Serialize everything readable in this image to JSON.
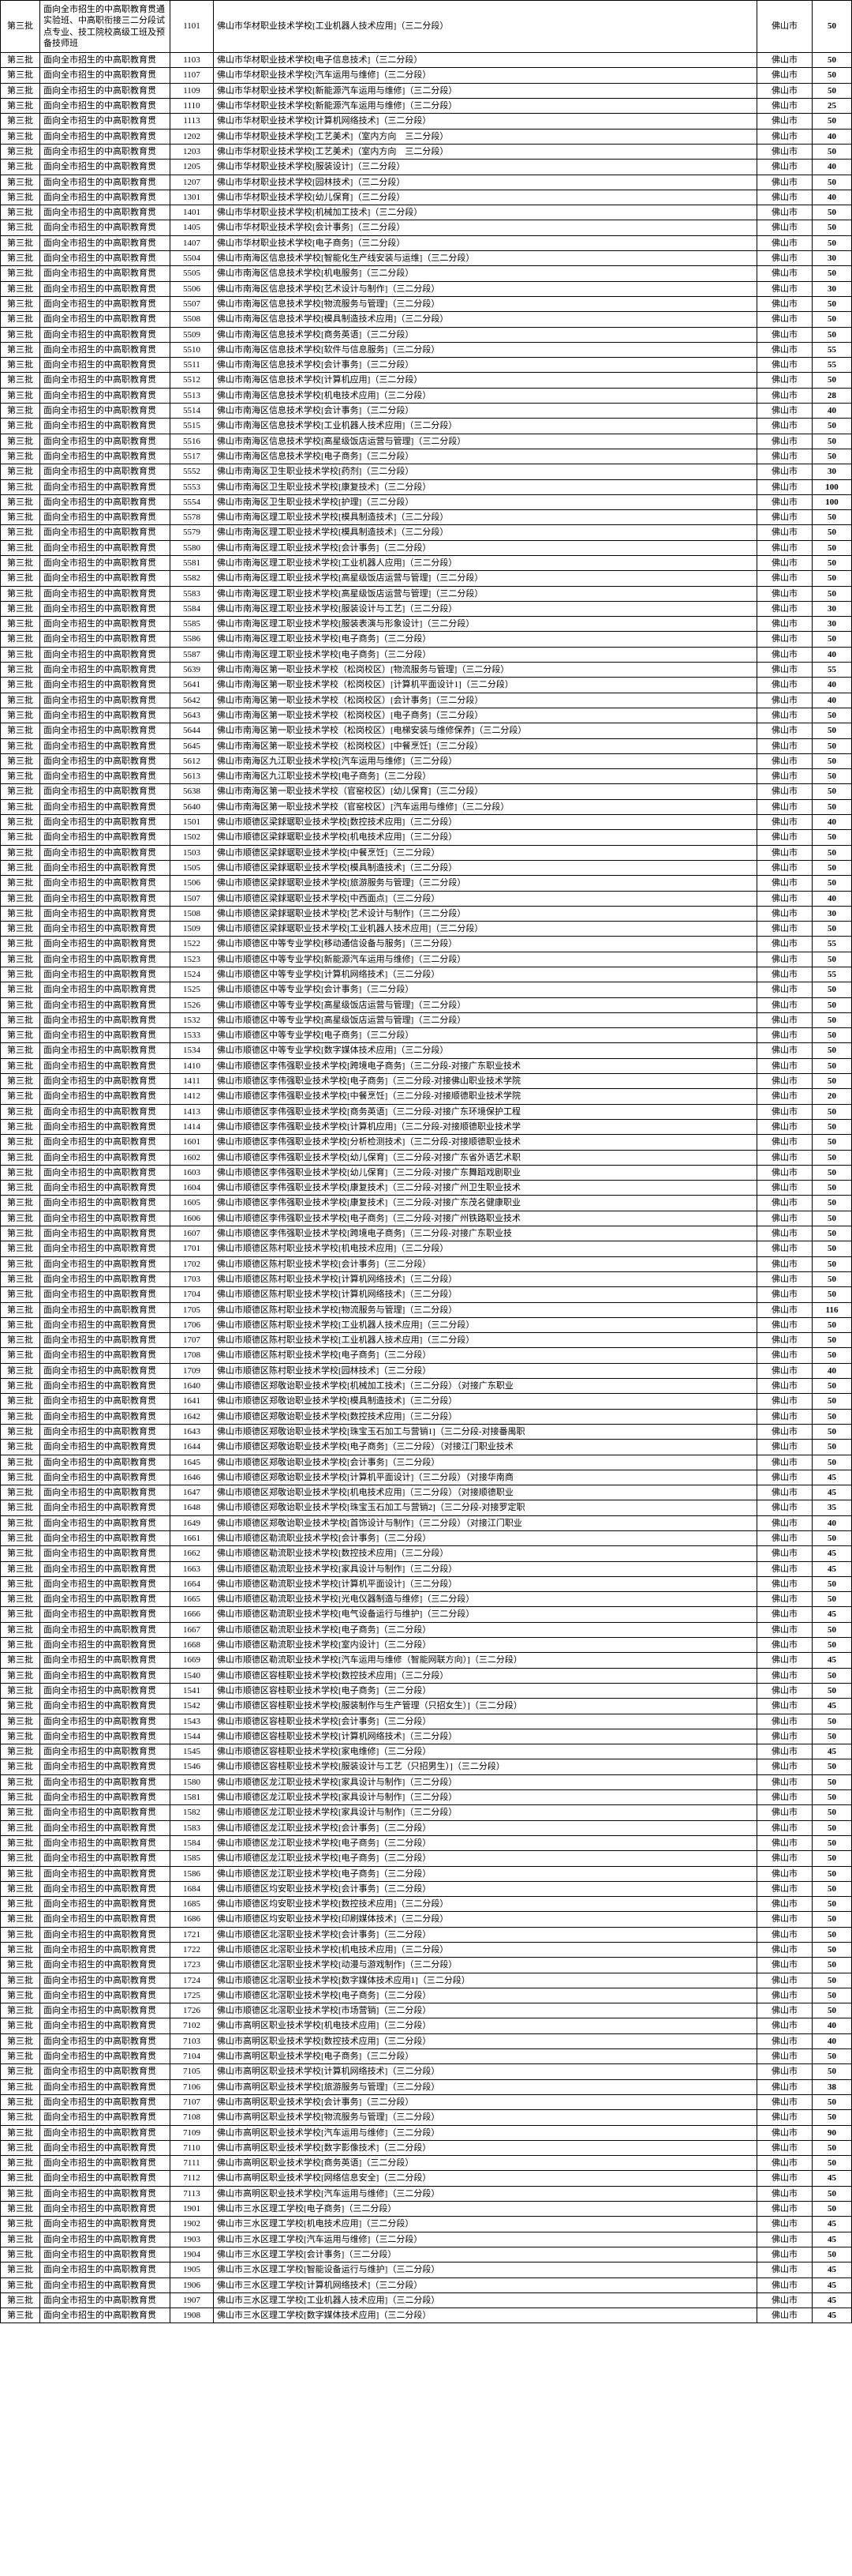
{
  "table": {
    "batch_label": "第三批",
    "category_full": "面向全市招生的中高职教育贯通实验班、中高职衔接三二分段试点专业、技工院校高级工班及预备技师班",
    "category_short": "面向全市招生的中高职教育贯",
    "city": "佛山市",
    "first_row": {
      "code": "1101",
      "school": "佛山市华材职业技术学校[工业机器人技术应用]（三二分段）",
      "quota": "50"
    },
    "rows": [
      {
        "code": "1103",
        "school": "佛山市华材职业技术学校[电子信息技术]（三二分段）",
        "quota": "50"
      },
      {
        "code": "1107",
        "school": "佛山市华材职业技术学校[汽车运用与维修]（三二分段）",
        "quota": "50"
      },
      {
        "code": "1109",
        "school": "佛山市华材职业技术学校[新能源汽车运用与维修]（三二分段）",
        "quota": "50"
      },
      {
        "code": "1110",
        "school": "佛山市华材职业技术学校[新能源汽车运用与维修]（三二分段）",
        "quota": "25"
      },
      {
        "code": "1113",
        "school": "佛山市华材职业技术学校[计算机网络技术]（三二分段）",
        "quota": "50"
      },
      {
        "code": "1202",
        "school": "佛山市华材职业技术学校[工艺美术]（室内方向　三二分段）",
        "quota": "40"
      },
      {
        "code": "1203",
        "school": "佛山市华材职业技术学校[工艺美术]（室内方向　三二分段）",
        "quota": "50"
      },
      {
        "code": "1205",
        "school": "佛山市华材职业技术学校[服装设计]（三二分段）",
        "quota": "40"
      },
      {
        "code": "1207",
        "school": "佛山市华材职业技术学校[园林技术]（三二分段）",
        "quota": "50"
      },
      {
        "code": "1301",
        "school": "佛山市华材职业技术学校[幼儿保育]（三二分段）",
        "quota": "40"
      },
      {
        "code": "1401",
        "school": "佛山市华材职业技术学校[机械加工技术]（三二分段）",
        "quota": "50"
      },
      {
        "code": "1405",
        "school": "佛山市华材职业技术学校[会计事务]（三二分段）",
        "quota": "50"
      },
      {
        "code": "1407",
        "school": "佛山市华材职业技术学校[电子商务]（三二分段）",
        "quota": "50"
      },
      {
        "code": "5504",
        "school": "佛山市南海区信息技术学校[智能化生产线安装与运维]（三二分段）",
        "quota": "30"
      },
      {
        "code": "5505",
        "school": "佛山市南海区信息技术学校[机电服务]（三二分段）",
        "quota": "50"
      },
      {
        "code": "5506",
        "school": "佛山市南海区信息技术学校[艺术设计与制作]（三二分段）",
        "quota": "30"
      },
      {
        "code": "5507",
        "school": "佛山市南海区信息技术学校[物流服务与管理]（三二分段）",
        "quota": "50"
      },
      {
        "code": "5508",
        "school": "佛山市南海区信息技术学校[模具制造技术应用]（三二分段）",
        "quota": "50"
      },
      {
        "code": "5509",
        "school": "佛山市南海区信息技术学校[商务英语]（三二分段）",
        "quota": "50"
      },
      {
        "code": "5510",
        "school": "佛山市南海区信息技术学校[软件与信息服务]（三二分段）",
        "quota": "55"
      },
      {
        "code": "5511",
        "school": "佛山市南海区信息技术学校[会计事务]（三二分段）",
        "quota": "55"
      },
      {
        "code": "5512",
        "school": "佛山市南海区信息技术学校[计算机应用]（三二分段）",
        "quota": "50"
      },
      {
        "code": "5513",
        "school": "佛山市南海区信息技术学校[机电技术应用]（三二分段）",
        "quota": "28"
      },
      {
        "code": "5514",
        "school": "佛山市南海区信息技术学校[会计事务]（三二分段）",
        "quota": "40"
      },
      {
        "code": "5515",
        "school": "佛山市南海区信息技术学校[工业机器人技术应用]（三二分段）",
        "quota": "50"
      },
      {
        "code": "5516",
        "school": "佛山市南海区信息技术学校[高星级饭店运营与管理]（三二分段）",
        "quota": "50"
      },
      {
        "code": "5517",
        "school": "佛山市南海区信息技术学校[电子商务]（三二分段）",
        "quota": "50"
      },
      {
        "code": "5552",
        "school": "佛山市南海区卫生职业技术学校[药剂]（三二分段）",
        "quota": "30"
      },
      {
        "code": "5553",
        "school": "佛山市南海区卫生职业技术学校[康复技术]（三二分段）",
        "quota": "100"
      },
      {
        "code": "5554",
        "school": "佛山市南海区卫生职业技术学校[护理]（三二分段）",
        "quota": "100"
      },
      {
        "code": "5578",
        "school": "佛山市南海区理工职业技术学校[模具制造技术]（三二分段）",
        "quota": "50"
      },
      {
        "code": "5579",
        "school": "佛山市南海区理工职业技术学校[模具制造技术]（三二分段）",
        "quota": "50"
      },
      {
        "code": "5580",
        "school": "佛山市南海区理工职业技术学校[会计事务]（三二分段）",
        "quota": "50"
      },
      {
        "code": "5581",
        "school": "佛山市南海区理工职业技术学校[工业机器人应用]（三二分段）",
        "quota": "50"
      },
      {
        "code": "5582",
        "school": "佛山市南海区理工职业技术学校[高星级饭店运营与管理]（三二分段）",
        "quota": "50"
      },
      {
        "code": "5583",
        "school": "佛山市南海区理工职业技术学校[高星级饭店运营与管理]（三二分段）",
        "quota": "50"
      },
      {
        "code": "5584",
        "school": "佛山市南海区理工职业技术学校[服装设计与工艺]（三二分段）",
        "quota": "30"
      },
      {
        "code": "5585",
        "school": "佛山市南海区理工职业技术学校[服装表演与形象设计]（三二分段）",
        "quota": "30"
      },
      {
        "code": "5586",
        "school": "佛山市南海区理工职业技术学校[电子商务]（三二分段）",
        "quota": "50"
      },
      {
        "code": "5587",
        "school": "佛山市南海区理工职业技术学校[电子商务]（三二分段）",
        "quota": "40"
      },
      {
        "code": "5639",
        "school": "佛山市南海区第一职业技术学校（松岗校区）[物流服务与管理]（三二分段）",
        "quota": "55"
      },
      {
        "code": "5641",
        "school": "佛山市南海区第一职业技术学校（松岗校区）[计算机平面设计1]（三二分段）",
        "quota": "40"
      },
      {
        "code": "5642",
        "school": "佛山市南海区第一职业技术学校（松岗校区）[会计事务]（三二分段）",
        "quota": "40"
      },
      {
        "code": "5643",
        "school": "佛山市南海区第一职业技术学校（松岗校区）[电子商务]（三二分段）",
        "quota": "50"
      },
      {
        "code": "5644",
        "school": "佛山市南海区第一职业技术学校（松岗校区）[电梯安装与维修保养]（三二分段）",
        "quota": "50"
      },
      {
        "code": "5645",
        "school": "佛山市南海区第一职业技术学校（松岗校区）[中餐烹饪]（三二分段）",
        "quota": "50"
      },
      {
        "code": "5612",
        "school": "佛山市南海区九江职业技术学校[汽车运用与维修]（三二分段）",
        "quota": "50"
      },
      {
        "code": "5613",
        "school": "佛山市南海区九江职业技术学校[电子商务]（三二分段）",
        "quota": "50"
      },
      {
        "code": "5638",
        "school": "佛山市南海区第一职业技术学校（官窑校区）[幼儿保育]（三二分段）",
        "quota": "50"
      },
      {
        "code": "5640",
        "school": "佛山市南海区第一职业技术学校（官窑校区）[汽车运用与维修]（三二分段）",
        "quota": "50"
      },
      {
        "code": "1501",
        "school": "佛山市顺德区梁銶琚职业技术学校[数控技术应用]（三二分段）",
        "quota": "40"
      },
      {
        "code": "1502",
        "school": "佛山市顺德区梁銶琚职业技术学校[机电技术应用]（三二分段）",
        "quota": "50"
      },
      {
        "code": "1503",
        "school": "佛山市顺德区梁銶琚职业技术学校[中餐烹饪]（三二分段）",
        "quota": "50"
      },
      {
        "code": "1505",
        "school": "佛山市顺德区梁銶琚职业技术学校[模具制造技术]（三二分段）",
        "quota": "50"
      },
      {
        "code": "1506",
        "school": "佛山市顺德区梁銶琚职业技术学校[旅游服务与管理]（三二分段）",
        "quota": "50"
      },
      {
        "code": "1507",
        "school": "佛山市顺德区梁銶琚职业技术学校[中西面点]（三二分段）",
        "quota": "40"
      },
      {
        "code": "1508",
        "school": "佛山市顺德区梁銶琚职业技术学校[艺术设计与制作]（三二分段）",
        "quota": "30"
      },
      {
        "code": "1509",
        "school": "佛山市顺德区梁銶琚职业技术学校[工业机器人技术应用]（三二分段）",
        "quota": "50"
      },
      {
        "code": "1522",
        "school": "佛山市顺德区中等专业学校[移动通信设备与服务]（三二分段）",
        "quota": "55"
      },
      {
        "code": "1523",
        "school": "佛山市顺德区中等专业学校[新能源汽车运用与维修]（三二分段）",
        "quota": "50"
      },
      {
        "code": "1524",
        "school": "佛山市顺德区中等专业学校[计算机网络技术]（三二分段）",
        "quota": "55"
      },
      {
        "code": "1525",
        "school": "佛山市顺德区中等专业学校[会计事务]（三二分段）",
        "quota": "50"
      },
      {
        "code": "1526",
        "school": "佛山市顺德区中等专业学校[高星级饭店运营与管理]（三二分段）",
        "quota": "50"
      },
      {
        "code": "1532",
        "school": "佛山市顺德区中等专业学校[高星级饭店运营与管理]（三二分段）",
        "quota": "50"
      },
      {
        "code": "1533",
        "school": "佛山市顺德区中等专业学校[电子商务]（三二分段）",
        "quota": "50"
      },
      {
        "code": "1534",
        "school": "佛山市顺德区中等专业学校[数字媒体技术应用]（三二分段）",
        "quota": "50"
      },
      {
        "code": "1410",
        "school": "佛山市顺德区李伟强职业技术学校[跨境电子商务]（三二分段-对接广东职业技术",
        "quota": "50"
      },
      {
        "code": "1411",
        "school": "佛山市顺德区李伟强职业技术学校[电子商务]（三二分段-对接佛山职业技术学院",
        "quota": "50"
      },
      {
        "code": "1412",
        "school": "佛山市顺德区李伟强职业技术学校[中餐烹饪]（三二分段-对接顺德职业技术学院",
        "quota": "20"
      },
      {
        "code": "1413",
        "school": "佛山市顺德区李伟强职业技术学校[商务英语]（三二分段-对接广东环境保护工程",
        "quota": "50"
      },
      {
        "code": "1414",
        "school": "佛山市顺德区李伟强职业技术学校[计算机应用]（三二分段-对接顺德职业技术学",
        "quota": "50"
      },
      {
        "code": "1601",
        "school": "佛山市顺德区李伟强职业技术学校[分析检测技术]（三二分段-对接顺德职业技术",
        "quota": "50"
      },
      {
        "code": "1602",
        "school": "佛山市顺德区李伟强职业技术学校[幼儿保育]（三二分段-对接广东省外语艺术职",
        "quota": "50"
      },
      {
        "code": "1603",
        "school": "佛山市顺德区李伟强职业技术学校[幼儿保育]（三二分段-对接广东舞蹈戏剧职业",
        "quota": "50"
      },
      {
        "code": "1604",
        "school": "佛山市顺德区李伟强职业技术学校[康复技术]（三二分段-对接广州卫生职业技术",
        "quota": "50"
      },
      {
        "code": "1605",
        "school": "佛山市顺德区李伟强职业技术学校[康复技术]（三二分段-对接广东茂名健康职业",
        "quota": "50"
      },
      {
        "code": "1606",
        "school": "佛山市顺德区李伟强职业技术学校[电子商务]（三二分段-对接广州铁路职业技术",
        "quota": "50"
      },
      {
        "code": "1607",
        "school": "佛山市顺德区李伟强职业技术学校[跨境电子商务]（三二分段-对接广东职业技",
        "quota": "50"
      },
      {
        "code": "1701",
        "school": "佛山市顺德区陈村职业技术学校[机电技术应用]（三二分段）",
        "quota": "50"
      },
      {
        "code": "1702",
        "school": "佛山市顺德区陈村职业技术学校[会计事务]（三二分段）",
        "quota": "50"
      },
      {
        "code": "1703",
        "school": "佛山市顺德区陈村职业技术学校[计算机网络技术]（三二分段）",
        "quota": "50"
      },
      {
        "code": "1704",
        "school": "佛山市顺德区陈村职业技术学校[计算机网络技术]（三二分段）",
        "quota": "50"
      },
      {
        "code": "1705",
        "school": "佛山市顺德区陈村职业技术学校[物流服务与管理]（三二分段）",
        "quota": "116"
      },
      {
        "code": "1706",
        "school": "佛山市顺德区陈村职业技术学校[工业机器人技术应用]（三二分段）",
        "quota": "50"
      },
      {
        "code": "1707",
        "school": "佛山市顺德区陈村职业技术学校[工业机器人技术应用]（三二分段）",
        "quota": "50"
      },
      {
        "code": "1708",
        "school": "佛山市顺德区陈村职业技术学校[电子商务]（三二分段）",
        "quota": "50"
      },
      {
        "code": "1709",
        "school": "佛山市顺德区陈村职业技术学校[园林技术]（三二分段）",
        "quota": "40"
      },
      {
        "code": "1640",
        "school": "佛山市顺德区郑敬诒职业技术学校[机械加工技术]（三二分段）（对接广东职业",
        "quota": "50"
      },
      {
        "code": "1641",
        "school": "佛山市顺德区郑敬诒职业技术学校[模具制造技术]（三二分段）",
        "quota": "50"
      },
      {
        "code": "1642",
        "school": "佛山市顺德区郑敬诒职业技术学校[数控技术应用]（三二分段）",
        "quota": "50"
      },
      {
        "code": "1643",
        "school": "佛山市顺德区郑敬诒职业技术学校[珠宝玉石加工与营销1]（三二分段-对接番禺职",
        "quota": "50"
      },
      {
        "code": "1644",
        "school": "佛山市顺德区郑敬诒职业技术学校[电子商务]（三二分段）（对接江门职业技术",
        "quota": "50"
      },
      {
        "code": "1645",
        "school": "佛山市顺德区郑敬诒职业技术学校[会计事务]（三二分段）",
        "quota": "50"
      },
      {
        "code": "1646",
        "school": "佛山市顺德区郑敬诒职业技术学校[计算机平面设计]（三二分段）（对接华南商",
        "quota": "45"
      },
      {
        "code": "1647",
        "school": "佛山市顺德区郑敬诒职业技术学校[机电技术应用]（三二分段）（对接顺德职业",
        "quota": "45"
      },
      {
        "code": "1648",
        "school": "佛山市顺德区郑敬诒职业技术学校[珠宝玉石加工与营销2]（三二分段-对接罗定职",
        "quota": "35"
      },
      {
        "code": "1649",
        "school": "佛山市顺德区郑敬诒职业技术学校[首饰设计与制作]（三二分段）（对接江门职业",
        "quota": "40"
      },
      {
        "code": "1661",
        "school": "佛山市顺德区勒流职业技术学校[会计事务]（三二分段）",
        "quota": "50"
      },
      {
        "code": "1662",
        "school": "佛山市顺德区勒流职业技术学校[数控技术应用]（三二分段）",
        "quota": "45"
      },
      {
        "code": "1663",
        "school": "佛山市顺德区勒流职业技术学校[家具设计与制作]（三二分段）",
        "quota": "45"
      },
      {
        "code": "1664",
        "school": "佛山市顺德区勒流职业技术学校[计算机平面设计]（三二分段）",
        "quota": "50"
      },
      {
        "code": "1665",
        "school": "佛山市顺德区勒流职业技术学校[光电仪器制造与维修]（三二分段）",
        "quota": "50"
      },
      {
        "code": "1666",
        "school": "佛山市顺德区勒流职业技术学校[电气设备运行与维护]（三二分段）",
        "quota": "45"
      },
      {
        "code": "1667",
        "school": "佛山市顺德区勒流职业技术学校[电子商务]（三二分段）",
        "quota": "50"
      },
      {
        "code": "1668",
        "school": "佛山市顺德区勒流职业技术学校[室内设计]（三二分段）",
        "quota": "50"
      },
      {
        "code": "1669",
        "school": "佛山市顺德区勒流职业技术学校[汽车运用与维修（智能网联方向）]（三二分段）",
        "quota": "45"
      },
      {
        "code": "1540",
        "school": "佛山市顺德区容桂职业技术学校[数控技术应用]（三二分段）",
        "quota": "50"
      },
      {
        "code": "1541",
        "school": "佛山市顺德区容桂职业技术学校[电子商务]（三二分段）",
        "quota": "50"
      },
      {
        "code": "1542",
        "school": "佛山市顺德区容桂职业技术学校[服装制作与生产管理（只招女生）]（三二分段）",
        "quota": "45"
      },
      {
        "code": "1543",
        "school": "佛山市顺德区容桂职业技术学校[会计事务]（三二分段）",
        "quota": "50"
      },
      {
        "code": "1544",
        "school": "佛山市顺德区容桂职业技术学校[计算机网络技术]（三二分段）",
        "quota": "50"
      },
      {
        "code": "1545",
        "school": "佛山市顺德区容桂职业技术学校[家电维修]（三二分段）",
        "quota": "45"
      },
      {
        "code": "1546",
        "school": "佛山市顺德区容桂职业技术学校[服装设计与工艺（只招男生）]（三二分段）",
        "quota": "50"
      },
      {
        "code": "1580",
        "school": "佛山市顺德区龙江职业技术学校[家具设计与制作]（三二分段）",
        "quota": "50"
      },
      {
        "code": "1581",
        "school": "佛山市顺德区龙江职业技术学校[家具设计与制作]（三二分段）",
        "quota": "50"
      },
      {
        "code": "1582",
        "school": "佛山市顺德区龙江职业技术学校[家具设计与制作]（三二分段）",
        "quota": "50"
      },
      {
        "code": "1583",
        "school": "佛山市顺德区龙江职业技术学校[会计事务]（三二分段）",
        "quota": "50"
      },
      {
        "code": "1584",
        "school": "佛山市顺德区龙江职业技术学校[电子商务]（三二分段）",
        "quota": "50"
      },
      {
        "code": "1585",
        "school": "佛山市顺德区龙江职业技术学校[电子商务]（三二分段）",
        "quota": "50"
      },
      {
        "code": "1586",
        "school": "佛山市顺德区龙江职业技术学校[电子商务]（三二分段）",
        "quota": "50"
      },
      {
        "code": "1684",
        "school": "佛山市顺德区均安职业技术学校[会计事务]（三二分段）",
        "quota": "50"
      },
      {
        "code": "1685",
        "school": "佛山市顺德区均安职业技术学校[数控技术应用]（三二分段）",
        "quota": "50"
      },
      {
        "code": "1686",
        "school": "佛山市顺德区均安职业技术学校[印刷媒体技术]（三二分段）",
        "quota": "50"
      },
      {
        "code": "1721",
        "school": "佛山市顺德区北滘职业技术学校[会计事务]（三二分段）",
        "quota": "50"
      },
      {
        "code": "1722",
        "school": "佛山市顺德区北滘职业技术学校[机电技术应用]（三二分段）",
        "quota": "50"
      },
      {
        "code": "1723",
        "school": "佛山市顺德区北滘职业技术学校[动漫与游戏制作]（三二分段）",
        "quota": "50"
      },
      {
        "code": "1724",
        "school": "佛山市顺德区北滘职业技术学校[数字媒体技术应用1]（三二分段）",
        "quota": "50"
      },
      {
        "code": "1725",
        "school": "佛山市顺德区北滘职业技术学校[电子商务]（三二分段）",
        "quota": "50"
      },
      {
        "code": "1726",
        "school": "佛山市顺德区北滘职业技术学校[市场营销]（三二分段）",
        "quota": "50"
      },
      {
        "code": "7102",
        "school": "佛山市高明区职业技术学校[机电技术应用]（三二分段）",
        "quota": "40"
      },
      {
        "code": "7103",
        "school": "佛山市高明区职业技术学校[数控技术应用]（三二分段）",
        "quota": "40"
      },
      {
        "code": "7104",
        "school": "佛山市高明区职业技术学校[电子商务]（三二分段）",
        "quota": "50"
      },
      {
        "code": "7105",
        "school": "佛山市高明区职业技术学校[计算机网络技术]（三二分段）",
        "quota": "50"
      },
      {
        "code": "7106",
        "school": "佛山市高明区职业技术学校[旅游服务与管理]（三二分段）",
        "quota": "38"
      },
      {
        "code": "7107",
        "school": "佛山市高明区职业技术学校[会计事务]（三二分段）",
        "quota": "50"
      },
      {
        "code": "7108",
        "school": "佛山市高明区职业技术学校[物流服务与管理]（三二分段）",
        "quota": "50"
      },
      {
        "code": "7109",
        "school": "佛山市高明区职业技术学校[汽车运用与维修]（三二分段）",
        "quota": "90"
      },
      {
        "code": "7110",
        "school": "佛山市高明区职业技术学校[数字影像技术]（三二分段）",
        "quota": "50"
      },
      {
        "code": "7111",
        "school": "佛山市高明区职业技术学校[商务英语]（三二分段）",
        "quota": "50"
      },
      {
        "code": "7112",
        "school": "佛山市高明区职业技术学校[网络信息安全]（三二分段）",
        "quota": "45"
      },
      {
        "code": "7113",
        "school": "佛山市高明区职业技术学校[汽车运用与维修]（三二分段）",
        "quota": "50"
      },
      {
        "code": "1901",
        "school": "佛山市三水区理工学校[电子商务]（三二分段）",
        "quota": "50"
      },
      {
        "code": "1902",
        "school": "佛山市三水区理工学校[机电技术应用]（三二分段）",
        "quota": "45"
      },
      {
        "code": "1903",
        "school": "佛山市三水区理工学校[汽车运用与维修]（三二分段）",
        "quota": "45"
      },
      {
        "code": "1904",
        "school": "佛山市三水区理工学校[会计事务]（三二分段）",
        "quota": "50"
      },
      {
        "code": "1905",
        "school": "佛山市三水区理工学校[智能设备运行与维护]（三二分段）",
        "quota": "45"
      },
      {
        "code": "1906",
        "school": "佛山市三水区理工学校[计算机网络技术]（三二分段）",
        "quota": "45"
      },
      {
        "code": "1907",
        "school": "佛山市三水区理工学校[工业机器人技术应用]（三二分段）",
        "quota": "45"
      },
      {
        "code": "1908",
        "school": "佛山市三水区理工学校[数字媒体技术应用]（三二分段）",
        "quota": "45"
      }
    ]
  }
}
